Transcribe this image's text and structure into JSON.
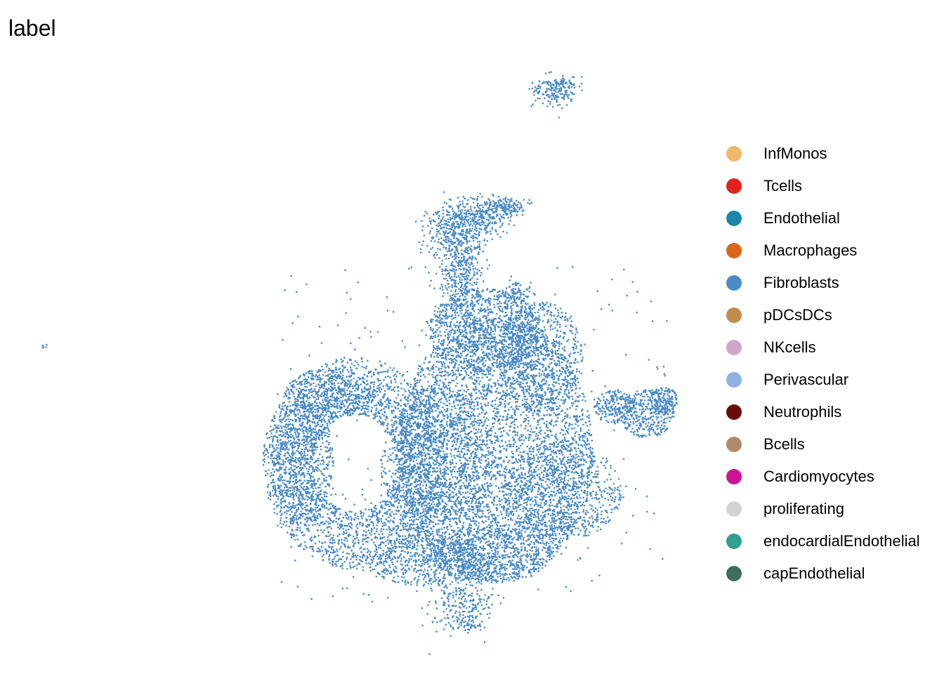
{
  "chart_data": {
    "type": "scatter",
    "title": "label",
    "xlabel": "",
    "ylabel": "",
    "grid": false,
    "axes_visible": false,
    "legend_position": "right",
    "point_color": "#4a8bc2",
    "legend": [
      {
        "label": "InfMonos",
        "color": "#f0b86a"
      },
      {
        "label": "Tcells",
        "color": "#e0221b"
      },
      {
        "label": "Endothelial",
        "color": "#1c86a8"
      },
      {
        "label": "Macrophages",
        "color": "#d9661a"
      },
      {
        "label": "Fibroblasts",
        "color": "#4a8bc2"
      },
      {
        "label": "pDCsDCs",
        "color": "#c08c4b"
      },
      {
        "label": "NKcells",
        "color": "#d2a6c4"
      },
      {
        "label": "Perivascular",
        "color": "#8cb2e0"
      },
      {
        "label": "Neutrophils",
        "color": "#6b0a0e"
      },
      {
        "label": "Bcells",
        "color": "#b0896a"
      },
      {
        "label": "Cardiomyocytes",
        "color": "#cc1494"
      },
      {
        "label": "proliferating",
        "color": "#d3d3d3"
      },
      {
        "label": "endocardialEndothelial",
        "color": "#2fa08c"
      },
      {
        "label": "capEndothelial",
        "color": "#3d6e5c"
      }
    ],
    "series": [
      {
        "label": "Fibroblasts",
        "approx_point_count": 16000
      }
    ]
  }
}
